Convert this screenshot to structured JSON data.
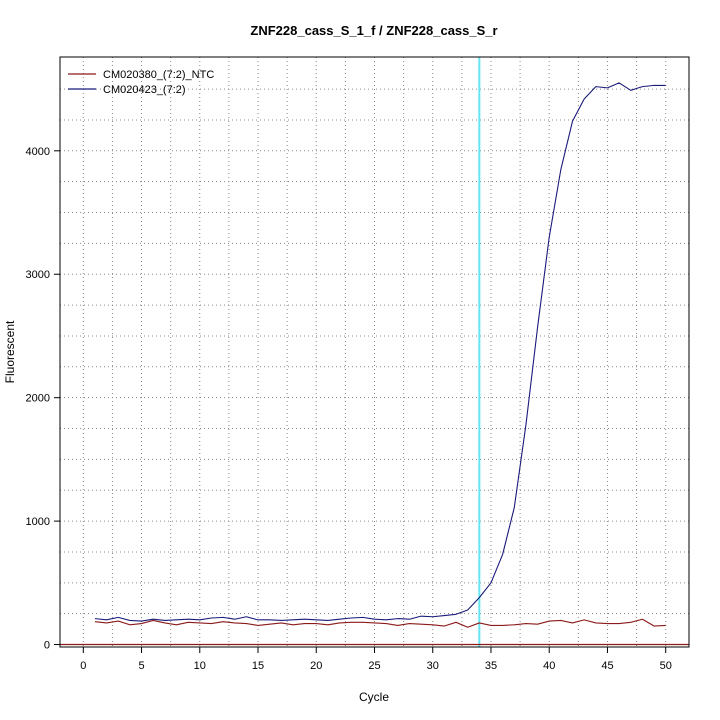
{
  "chart_data": {
    "type": "line",
    "title": "ZNF228_cass_S_1_f / ZNF228_cass_S_r",
    "xlabel": "Cycle",
    "ylabel": "Fluorescent",
    "xlim": [
      -2,
      52
    ],
    "ylim": [
      -20,
      4760
    ],
    "x_ticks": [
      0,
      5,
      10,
      15,
      20,
      25,
      30,
      35,
      40,
      45,
      50
    ],
    "y_ticks": [
      0,
      1000,
      2000,
      3000,
      4000
    ],
    "grid": true,
    "legend_position": "top-left",
    "threshold_x": 34,
    "baseline_y": 0,
    "colors": {
      "threshold": "#66e6f2",
      "baseline": "#8b1a1a",
      "grid": "#888888"
    },
    "series": [
      {
        "name": "CM020380_(7:2)_NTC",
        "color": "#8b1a1a",
        "x": [
          1,
          2,
          3,
          4,
          5,
          6,
          7,
          8,
          9,
          10,
          11,
          12,
          13,
          14,
          15,
          16,
          17,
          18,
          19,
          20,
          21,
          22,
          23,
          24,
          25,
          26,
          27,
          28,
          29,
          30,
          31,
          32,
          33,
          34,
          35,
          36,
          37,
          38,
          39,
          40,
          41,
          42,
          43,
          44,
          45,
          46,
          47,
          48,
          49,
          50
        ],
        "y": [
          185,
          175,
          190,
          160,
          170,
          195,
          175,
          160,
          180,
          175,
          170,
          185,
          175,
          170,
          155,
          165,
          175,
          160,
          170,
          170,
          160,
          175,
          180,
          180,
          175,
          170,
          155,
          170,
          165,
          160,
          150,
          180,
          140,
          175,
          155,
          155,
          160,
          170,
          165,
          190,
          195,
          175,
          200,
          175,
          170,
          170,
          180,
          205,
          150,
          155
        ]
      },
      {
        "name": "CM020423_(7:2)",
        "color": "#1a1a7a",
        "x": [
          1,
          2,
          3,
          4,
          5,
          6,
          7,
          8,
          9,
          10,
          11,
          12,
          13,
          14,
          15,
          16,
          17,
          18,
          19,
          20,
          21,
          22,
          23,
          24,
          25,
          26,
          27,
          28,
          29,
          30,
          31,
          32,
          33,
          34,
          35,
          36,
          37,
          38,
          39,
          40,
          41,
          42,
          43,
          44,
          45,
          46,
          47,
          48,
          49,
          50
        ],
        "y": [
          210,
          200,
          220,
          195,
          190,
          205,
          195,
          200,
          205,
          200,
          215,
          220,
          205,
          225,
          200,
          200,
          195,
          200,
          205,
          200,
          195,
          205,
          215,
          220,
          205,
          200,
          210,
          205,
          230,
          225,
          235,
          245,
          280,
          380,
          500,
          730,
          1110,
          1780,
          2570,
          3300,
          3850,
          4240,
          4420,
          4520,
          4510,
          4550,
          4490,
          4520,
          4530,
          4530
        ]
      }
    ]
  }
}
